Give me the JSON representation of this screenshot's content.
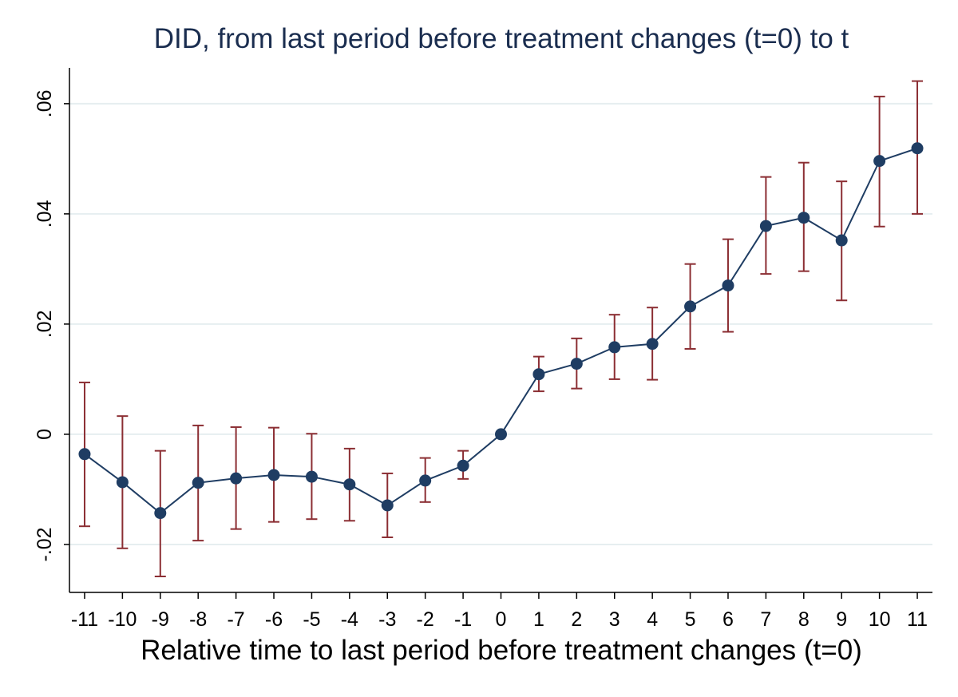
{
  "chart_data": {
    "type": "errorbar-line",
    "title": "DID, from last period before treatment changes (t=0) to t",
    "xlabel": "Relative time to last period before treatment changes (t=0)",
    "x": [
      -11,
      -10,
      -9,
      -8,
      -7,
      -6,
      -5,
      -4,
      -3,
      -2,
      -1,
      0,
      1,
      2,
      3,
      4,
      5,
      6,
      7,
      8,
      9,
      10,
      11
    ],
    "series": [
      {
        "color": "#1f3d63",
        "errorbar_color": "#8b2e33",
        "values": [
          -0.0036,
          -0.0087,
          -0.0143,
          -0.0088,
          -0.008,
          -0.0074,
          -0.0077,
          -0.0091,
          -0.0129,
          -0.0084,
          -0.0057,
          0,
          0.0109,
          0.0128,
          0.0158,
          0.0164,
          0.0232,
          0.027,
          0.0378,
          0.0393,
          0.0352,
          0.0496,
          0.0519
        ],
        "lower": [
          -0.0167,
          -0.0207,
          -0.0258,
          -0.0193,
          -0.0172,
          -0.0159,
          -0.0154,
          -0.0157,
          -0.0187,
          -0.0123,
          -0.0081,
          null,
          0.0078,
          0.0083,
          0.01,
          0.0099,
          0.0155,
          0.0186,
          0.0291,
          0.0296,
          0.0243,
          0.0377,
          0.04
        ],
        "upper": [
          0.0094,
          0.0033,
          -0.003,
          0.0016,
          0.0013,
          0.0012,
          0.0001,
          -0.0026,
          -0.0071,
          -0.0043,
          -0.003,
          null,
          0.0141,
          0.0174,
          0.0217,
          0.023,
          0.0309,
          0.0354,
          0.0467,
          0.0493,
          0.0459,
          0.0613,
          0.0641
        ]
      }
    ],
    "xlim": [
      -11.4,
      11.4
    ],
    "xticks": [
      -11,
      -10,
      -9,
      -8,
      -7,
      -6,
      -5,
      -4,
      -3,
      -2,
      -1,
      0,
      1,
      2,
      3,
      4,
      5,
      6,
      7,
      8,
      9,
      10,
      11
    ],
    "ylim": [
      -0.0287,
      0.0665
    ],
    "yticks": [
      {
        "value": -0.02,
        "label": "-.02"
      },
      0,
      {
        "value": 0.02,
        "label": ".02"
      },
      {
        "value": 0.04,
        "label": ".04"
      },
      {
        "value": 0.06,
        "label": ".06"
      }
    ],
    "grid": true,
    "grid_color": "#e6eef0"
  }
}
